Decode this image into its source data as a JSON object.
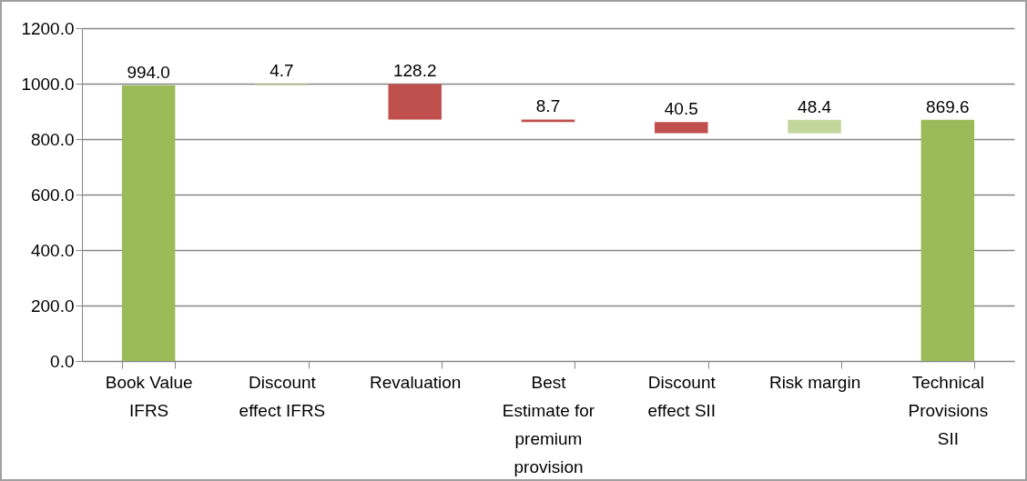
{
  "chart_data": {
    "type": "bar",
    "categories": [
      "Book Value IFRS",
      "Discount effect IFRS",
      "Revaluation",
      "Best Estimate for premium provision",
      "Discount effect SII",
      "Risk margin",
      "Technical Provisions SII"
    ],
    "values": [
      994.0,
      4.7,
      128.2,
      8.7,
      40.5,
      48.4,
      869.6
    ],
    "base": [
      0,
      994.0,
      870.5,
      861.8,
      821.3,
      821.3,
      0
    ],
    "colors": [
      "#9bbb59",
      "#c3d69b",
      "#c0504d",
      "#c0504d",
      "#c0504d",
      "#c3d69b",
      "#9bbb59"
    ],
    "value_labels": [
      "994.0",
      "4.7",
      "128.2",
      "8.7",
      "40.5",
      "48.4",
      "869.6"
    ],
    "ylim": [
      0,
      1200
    ],
    "yticks": [
      {
        "value": 0,
        "label": "0.0"
      },
      {
        "value": 200,
        "label": "200.0"
      },
      {
        "value": 400,
        "label": "400.0"
      },
      {
        "value": 600,
        "label": "600.0"
      },
      {
        "value": 800,
        "label": "800.0"
      },
      {
        "value": 1000,
        "label": "1000.0"
      },
      {
        "value": 1200,
        "label": "1200.0"
      }
    ],
    "grid": "y"
  }
}
